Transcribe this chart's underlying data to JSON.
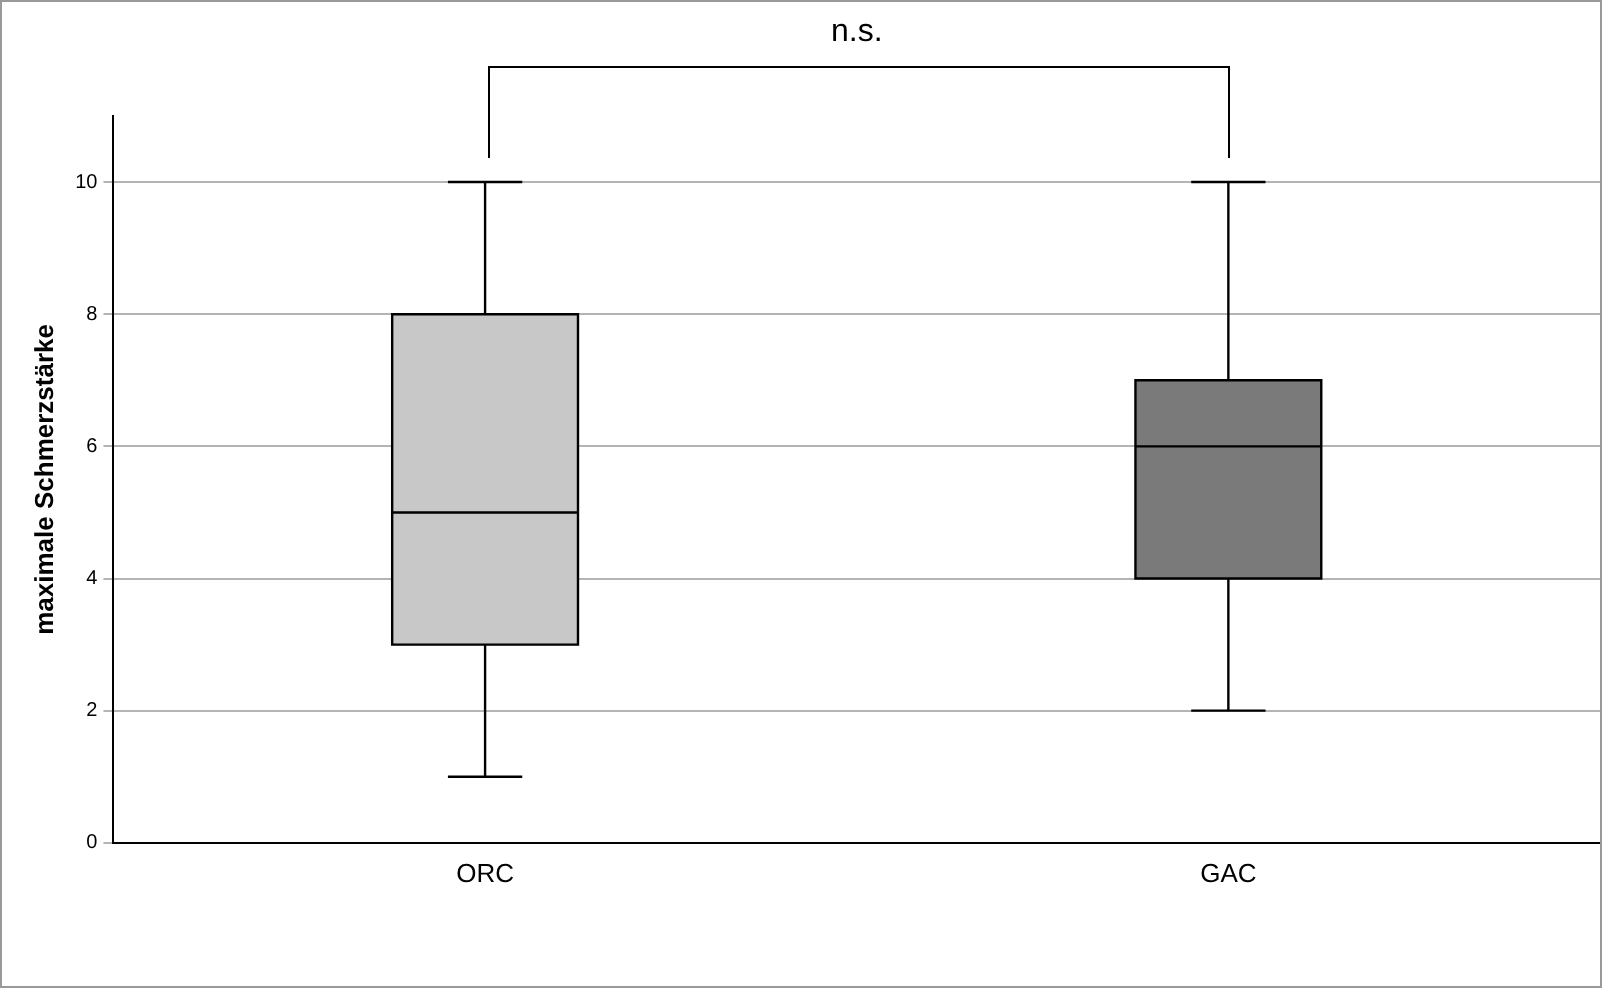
{
  "chart_data": {
    "type": "box",
    "ylabel": "maximale Schmerzstärke",
    "categories": [
      "ORC",
      "GAC"
    ],
    "boxes": [
      {
        "low": 1,
        "q1": 3,
        "median": 5,
        "q3": 8,
        "high": 10
      },
      {
        "low": 2,
        "q1": 4,
        "median": 6,
        "q3": 7,
        "high": 10
      }
    ],
    "colors": [
      "#c8c8c8",
      "#7a7a7a"
    ],
    "ylim": [
      0,
      11
    ],
    "yticks": [
      0,
      2,
      4,
      6,
      8,
      10
    ],
    "grid": "y",
    "legend": false,
    "annotations": [
      "n.s."
    ]
  }
}
